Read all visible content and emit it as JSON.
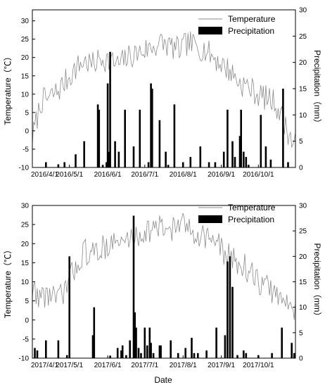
{
  "figure": {
    "xlabel": "Date"
  },
  "chart_data": [
    {
      "type": "line+bar",
      "title": "",
      "xlabel": "",
      "ylabel_left": "Temperature（℃）",
      "ylabel_right": "Precipitation（mm）",
      "left_ylim": [
        -10,
        33
      ],
      "right_ylim": [
        0,
        30
      ],
      "left_yticks": [
        -10,
        -5,
        0,
        5,
        10,
        15,
        20,
        25,
        30
      ],
      "right_yticks": [
        0,
        5,
        10,
        15,
        20,
        25,
        30
      ],
      "xlim": [
        "2016-04-01",
        "2016-10-31"
      ],
      "xtick_dates": [
        "2016-04-01",
        "2016-05-01",
        "2016-06-01",
        "2016-07-01",
        "2016-08-01",
        "2016-09-01",
        "2016-10-01"
      ],
      "xtick_labels": [
        "2016/4/1",
        "2016/5/1",
        "2016/6/1",
        "2016/7/1",
        "2016/8/1",
        "2016/9/1",
        "2016/10/1"
      ],
      "legend": {
        "position": "top-right",
        "entries": [
          "Temperature",
          "Precipitation"
        ]
      },
      "grid": false,
      "colors": {
        "temperature": "#8c8c8c",
        "precipitation": "#000000"
      },
      "temperature_weekly": {
        "dates": [
          "2016-04-01",
          "2016-04-08",
          "2016-04-15",
          "2016-04-22",
          "2016-04-29",
          "2016-05-06",
          "2016-05-13",
          "2016-05-20",
          "2016-05-27",
          "2016-06-03",
          "2016-06-10",
          "2016-06-17",
          "2016-06-24",
          "2016-07-01",
          "2016-07-08",
          "2016-07-15",
          "2016-07-22",
          "2016-07-29",
          "2016-08-05",
          "2016-08-12",
          "2016-08-19",
          "2016-08-26",
          "2016-09-02",
          "2016-09-09",
          "2016-09-16",
          "2016-09-23",
          "2016-09-30",
          "2016-10-07",
          "2016-10-14",
          "2016-10-21",
          "2016-10-28"
        ],
        "values": [
          -2,
          8,
          9,
          11,
          14,
          17,
          19,
          18,
          20,
          19,
          18,
          20,
          21,
          22,
          23,
          24,
          23,
          22,
          24,
          23,
          22,
          20,
          18,
          16,
          13,
          12,
          10,
          9,
          8,
          3,
          -3
        ]
      },
      "precipitation": {
        "dates": [
          "2016-04-12",
          "2016-04-22",
          "2016-04-27",
          "2016-05-06",
          "2016-05-13",
          "2016-05-24",
          "2016-05-25",
          "2016-05-28",
          "2016-05-31",
          "2016-06-01",
          "2016-06-02",
          "2016-06-03",
          "2016-06-07",
          "2016-06-10",
          "2016-06-15",
          "2016-06-22",
          "2016-06-27",
          "2016-07-04",
          "2016-07-06",
          "2016-07-07",
          "2016-07-13",
          "2016-07-18",
          "2016-07-20",
          "2016-07-25",
          "2016-08-01",
          "2016-08-07",
          "2016-08-15",
          "2016-08-22",
          "2016-08-27",
          "2016-09-03",
          "2016-09-06",
          "2016-09-10",
          "2016-09-12",
          "2016-09-16",
          "2016-09-17",
          "2016-09-19",
          "2016-09-21",
          "2016-09-23",
          "2016-10-03",
          "2016-10-07",
          "2016-10-11",
          "2016-10-21",
          "2016-10-25"
        ],
        "values": [
          1,
          0.6,
          1,
          2.5,
          5,
          12,
          11,
          0.5,
          1,
          16,
          3,
          22,
          5,
          3,
          11,
          4,
          11,
          1,
          16,
          15,
          9,
          3,
          0.5,
          12,
          1,
          2,
          4,
          1,
          1,
          3,
          11,
          5,
          2,
          6,
          11,
          3,
          2,
          0.5,
          10,
          4,
          1.5,
          15,
          1
        ]
      }
    },
    {
      "type": "line+bar",
      "title": "",
      "xlabel": "",
      "ylabel_left": "Temperature（℃）",
      "ylabel_right": "Precipitation（mm）",
      "left_ylim": [
        -10,
        30
      ],
      "right_ylim": [
        0,
        30
      ],
      "left_yticks": [
        -10,
        -5,
        0,
        5,
        10,
        15,
        20,
        25,
        30
      ],
      "right_yticks": [
        0,
        5,
        10,
        15,
        20,
        25,
        30
      ],
      "xlim": [
        "2017-04-01",
        "2017-10-31"
      ],
      "xtick_dates": [
        "2017-04-01",
        "2017-05-01",
        "2017-06-01",
        "2017-07-01",
        "2017-08-01",
        "2017-09-01",
        "2017-10-01"
      ],
      "xtick_labels": [
        "2017/4/1",
        "2017/5/1",
        "2017/6/1",
        "2017/7/1",
        "2017/8/1",
        "2017/9/1",
        "2017/10/1"
      ],
      "legend": {
        "position": "top-right",
        "entries": [
          "Temperature",
          "Precipitation"
        ]
      },
      "grid": false,
      "colors": {
        "temperature": "#8c8c8c",
        "precipitation": "#000000"
      },
      "temperature_weekly": {
        "dates": [
          "2017-04-01",
          "2017-04-08",
          "2017-04-15",
          "2017-04-22",
          "2017-04-29",
          "2017-05-06",
          "2017-05-13",
          "2017-05-20",
          "2017-05-27",
          "2017-06-03",
          "2017-06-10",
          "2017-06-17",
          "2017-06-24",
          "2017-07-01",
          "2017-07-08",
          "2017-07-15",
          "2017-07-22",
          "2017-07-29",
          "2017-08-05",
          "2017-08-12",
          "2017-08-19",
          "2017-08-26",
          "2017-09-02",
          "2017-09-09",
          "2017-09-16",
          "2017-09-23",
          "2017-09-30",
          "2017-10-07",
          "2017-10-14",
          "2017-10-21",
          "2017-10-28"
        ],
        "values": [
          8,
          6,
          7,
          5,
          9,
          14,
          18,
          17,
          19,
          20,
          20,
          21,
          22,
          23,
          24,
          24,
          24,
          25,
          24,
          23,
          22,
          21,
          18,
          16,
          15,
          13,
          10,
          9,
          7,
          5,
          3
        ]
      },
      "precipitation": {
        "dates": [
          "2017-04-03",
          "2017-04-05",
          "2017-04-12",
          "2017-04-22",
          "2017-04-29",
          "2017-05-01",
          "2017-05-20",
          "2017-05-21",
          "2017-06-03",
          "2017-06-09",
          "2017-06-12",
          "2017-06-13",
          "2017-06-16",
          "2017-06-19",
          "2017-06-22",
          "2017-06-23",
          "2017-06-24",
          "2017-06-26",
          "2017-06-28",
          "2017-07-01",
          "2017-07-03",
          "2017-07-05",
          "2017-07-06",
          "2017-07-08",
          "2017-07-13",
          "2017-07-14",
          "2017-07-22",
          "2017-07-28",
          "2017-08-03",
          "2017-08-08",
          "2017-08-10",
          "2017-08-13",
          "2017-08-20",
          "2017-08-28",
          "2017-09-04",
          "2017-09-06",
          "2017-09-08",
          "2017-09-10",
          "2017-09-14",
          "2017-09-19",
          "2017-09-21",
          "2017-10-01",
          "2017-10-12",
          "2017-10-20",
          "2017-10-28",
          "2017-10-30"
        ],
        "values": [
          2,
          1.5,
          3.5,
          3.5,
          0.6,
          20,
          4.5,
          10,
          0.5,
          2,
          1.5,
          2.5,
          0.6,
          3.5,
          28,
          9,
          6,
          2,
          1,
          6,
          2.5,
          6,
          3,
          1,
          2.5,
          2.5,
          3.5,
          1,
          2,
          4,
          1,
          1,
          1.5,
          6,
          4.5,
          19,
          20,
          14,
          0.6,
          1.5,
          1,
          0.6,
          1,
          6,
          3,
          1
        ]
      }
    }
  ]
}
